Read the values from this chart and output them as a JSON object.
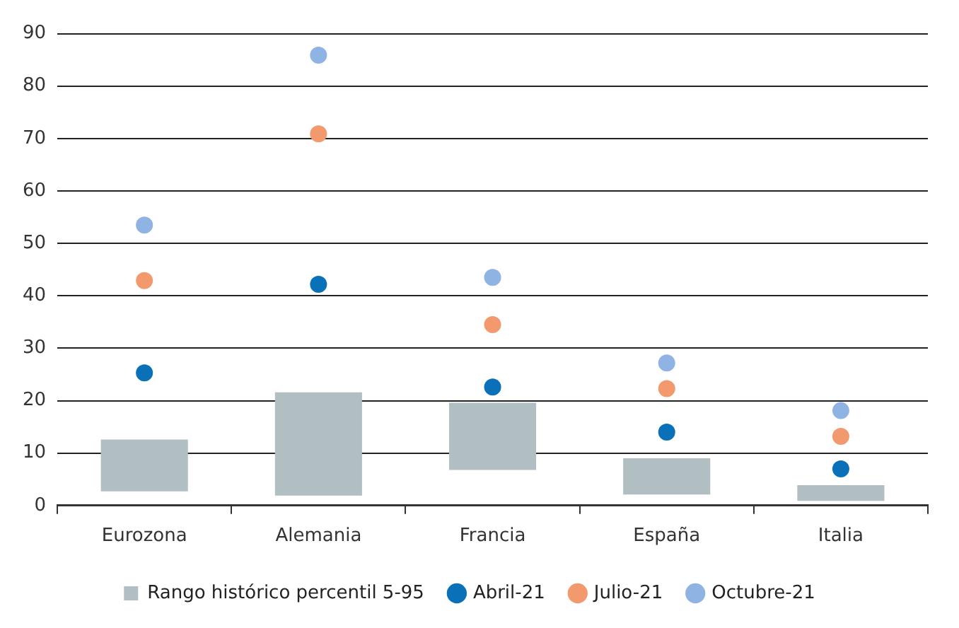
{
  "chart_data": {
    "type": "bar",
    "categories": [
      "Eurozona",
      "Alemania",
      "Francia",
      "España",
      "Italia"
    ],
    "series": [
      {
        "name": "Rango histórico percentil 5-95",
        "color": "#b1bec2",
        "base": [
          2.7,
          1.9,
          6.8,
          2.1,
          0.9
        ],
        "values": [
          9.9,
          19.7,
          12.8,
          6.9,
          3.0
        ]
      },
      {
        "type": "scatter",
        "name": "Abril-21",
        "color": "#0a70b8",
        "values": [
          25.3,
          42.2,
          22.6,
          14.0,
          7.0
        ]
      },
      {
        "type": "scatter",
        "name": "Julio-21",
        "color": "#f29a6e",
        "values": [
          42.9,
          70.9,
          34.5,
          22.3,
          13.2
        ]
      },
      {
        "type": "scatter",
        "name": "Octubre-21",
        "color": "#8fb3e3",
        "values": [
          53.5,
          85.9,
          43.5,
          27.2,
          18.1
        ]
      }
    ],
    "ylim": [
      0,
      90
    ],
    "yticks": [
      0,
      10,
      20,
      30,
      40,
      50,
      60,
      70,
      80,
      90
    ],
    "grid": "y",
    "legend": "bottom",
    "marker": "circle"
  }
}
